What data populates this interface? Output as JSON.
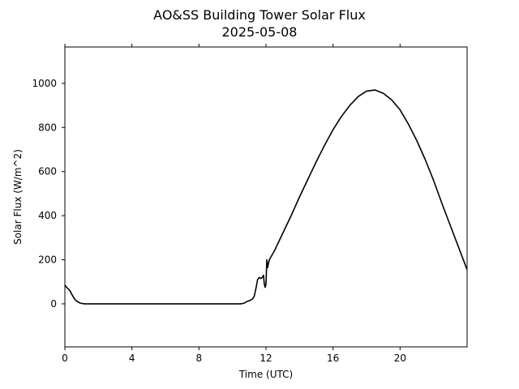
{
  "chart_data": {
    "type": "line",
    "title": "AO&SS Building Tower Solar Flux",
    "subtitle": "2025-05-08",
    "xlabel": "Time (UTC)",
    "ylabel": "Solar Flux (W/m^2)",
    "xlim": [
      0,
      24
    ],
    "ylim": [
      -195,
      1165
    ],
    "xticks": [
      0,
      4,
      8,
      12,
      16,
      20
    ],
    "yticks": [
      0,
      200,
      400,
      600,
      800,
      1000
    ],
    "grid": false,
    "legend": "none",
    "series": [
      {
        "color": "#000000",
        "x": [
          0.0,
          0.1,
          0.2,
          0.3,
          0.4,
          0.5,
          0.6,
          0.7,
          0.8,
          0.9,
          1.0,
          1.1,
          1.2,
          1.5,
          2.0,
          4.0,
          6.0,
          8.0,
          10.0,
          10.5,
          10.7,
          10.8,
          10.9,
          11.0,
          11.1,
          11.2,
          11.3,
          11.4,
          11.5,
          11.6,
          11.7,
          11.8,
          11.85,
          11.9,
          11.95,
          12.0,
          12.05,
          12.1,
          12.15,
          12.2,
          12.5,
          13.0,
          13.5,
          14.0,
          14.5,
          15.0,
          15.5,
          16.0,
          16.5,
          17.0,
          17.5,
          18.0,
          18.5,
          19.0,
          19.5,
          20.0,
          20.5,
          21.0,
          21.5,
          22.0,
          22.5,
          23.0,
          23.5,
          24.0
        ],
        "y": [
          85,
          75,
          68,
          60,
          45,
          32,
          20,
          13,
          8,
          4,
          2,
          1,
          0,
          0,
          0,
          0,
          0,
          0,
          0,
          0,
          3,
          8,
          12,
          14,
          18,
          22,
          35,
          70,
          110,
          120,
          115,
          122,
          130,
          90,
          75,
          90,
          200,
          165,
          185,
          200,
          240,
          320,
          400,
          485,
          565,
          645,
          720,
          790,
          850,
          900,
          940,
          965,
          970,
          955,
          925,
          880,
          815,
          740,
          655,
          560,
          455,
          355,
          255,
          155
        ]
      }
    ]
  }
}
